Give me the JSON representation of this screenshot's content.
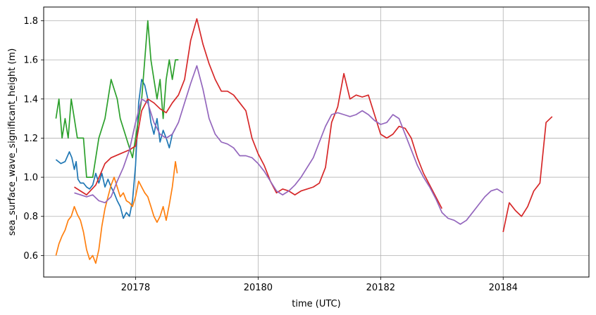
{
  "chart_data": {
    "type": "line",
    "title": "",
    "xlabel": "time (UTC)",
    "ylabel": "sea_surface_wave_significant_height (m)",
    "xlim": [
      20176.5,
      20185.4
    ],
    "ylim": [
      0.49,
      1.87
    ],
    "xticks": [
      20178,
      20180,
      20182,
      20184
    ],
    "xtick_labels": [
      "20178",
      "20180",
      "20182",
      "20184"
    ],
    "yticks": [
      0.6,
      0.8,
      1.0,
      1.2,
      1.4,
      1.6,
      1.8
    ],
    "ytick_labels": [
      "0.6",
      "0.8",
      "1.0",
      "1.2",
      "1.4",
      "1.6",
      "1.8"
    ],
    "grid": true,
    "legend": "none",
    "series": [
      {
        "color": "#1f77b4",
        "points": [
          [
            20176.7,
            1.09
          ],
          [
            20176.78,
            1.07
          ],
          [
            20176.85,
            1.08
          ],
          [
            20176.92,
            1.13
          ],
          [
            20176.96,
            1.1
          ],
          [
            20177.0,
            1.04
          ],
          [
            20177.03,
            1.08
          ],
          [
            20177.06,
            0.99
          ],
          [
            20177.1,
            0.97
          ],
          [
            20177.15,
            0.97
          ],
          [
            20177.2,
            0.95
          ],
          [
            20177.25,
            0.94
          ],
          [
            20177.3,
            0.96
          ],
          [
            20177.35,
            1.02
          ],
          [
            20177.4,
            0.97
          ],
          [
            20177.45,
            1.02
          ],
          [
            20177.5,
            0.95
          ],
          [
            20177.55,
            0.99
          ],
          [
            20177.6,
            0.95
          ],
          [
            20177.65,
            0.92
          ],
          [
            20177.7,
            0.88
          ],
          [
            20177.75,
            0.85
          ],
          [
            20177.8,
            0.79
          ],
          [
            20177.85,
            0.82
          ],
          [
            20177.9,
            0.8
          ],
          [
            20177.95,
            0.88
          ],
          [
            20178.0,
            1.06
          ],
          [
            20178.05,
            1.38
          ],
          [
            20178.1,
            1.5
          ],
          [
            20178.15,
            1.47
          ],
          [
            20178.2,
            1.4
          ],
          [
            20178.25,
            1.28
          ],
          [
            20178.3,
            1.22
          ],
          [
            20178.35,
            1.3
          ],
          [
            20178.4,
            1.18
          ],
          [
            20178.45,
            1.24
          ],
          [
            20178.5,
            1.2
          ],
          [
            20178.55,
            1.15
          ],
          [
            20178.6,
            1.22
          ],
          [
            20178.65,
            1.25
          ]
        ]
      },
      {
        "color": "#ff7f0e",
        "points": [
          [
            20176.7,
            0.6
          ],
          [
            20176.75,
            0.66
          ],
          [
            20176.8,
            0.7
          ],
          [
            20176.85,
            0.73
          ],
          [
            20176.9,
            0.78
          ],
          [
            20176.95,
            0.8
          ],
          [
            20177.0,
            0.85
          ],
          [
            20177.05,
            0.81
          ],
          [
            20177.1,
            0.78
          ],
          [
            20177.15,
            0.72
          ],
          [
            20177.2,
            0.63
          ],
          [
            20177.25,
            0.58
          ],
          [
            20177.3,
            0.6
          ],
          [
            20177.35,
            0.56
          ],
          [
            20177.4,
            0.63
          ],
          [
            20177.45,
            0.75
          ],
          [
            20177.5,
            0.84
          ],
          [
            20177.55,
            0.9
          ],
          [
            20177.6,
            0.96
          ],
          [
            20177.65,
            1.0
          ],
          [
            20177.7,
            0.95
          ],
          [
            20177.75,
            0.9
          ],
          [
            20177.8,
            0.92
          ],
          [
            20177.85,
            0.88
          ],
          [
            20177.9,
            0.87
          ],
          [
            20177.95,
            0.85
          ],
          [
            20178.0,
            0.9
          ],
          [
            20178.05,
            0.98
          ],
          [
            20178.1,
            0.95
          ],
          [
            20178.15,
            0.92
          ],
          [
            20178.2,
            0.9
          ],
          [
            20178.25,
            0.85
          ],
          [
            20178.3,
            0.8
          ],
          [
            20178.35,
            0.77
          ],
          [
            20178.4,
            0.8
          ],
          [
            20178.45,
            0.85
          ],
          [
            20178.5,
            0.78
          ],
          [
            20178.55,
            0.86
          ],
          [
            20178.6,
            0.95
          ],
          [
            20178.65,
            1.08
          ],
          [
            20178.68,
            1.02
          ]
        ]
      },
      {
        "color": "#2ca02c",
        "points": [
          [
            20176.7,
            1.3
          ],
          [
            20176.75,
            1.4
          ],
          [
            20176.8,
            1.2
          ],
          [
            20176.85,
            1.3
          ],
          [
            20176.9,
            1.2
          ],
          [
            20176.95,
            1.4
          ],
          [
            20177.0,
            1.3
          ],
          [
            20177.05,
            1.2
          ],
          [
            20177.15,
            1.2
          ],
          [
            20177.2,
            1.0
          ],
          [
            20177.3,
            1.0
          ],
          [
            20177.4,
            1.2
          ],
          [
            20177.5,
            1.3
          ],
          [
            20177.6,
            1.5
          ],
          [
            20177.7,
            1.4
          ],
          [
            20177.75,
            1.3
          ],
          [
            20177.85,
            1.2
          ],
          [
            20177.95,
            1.1
          ],
          [
            20178.0,
            1.2
          ],
          [
            20178.05,
            1.3
          ],
          [
            20178.1,
            1.4
          ],
          [
            20178.15,
            1.6
          ],
          [
            20178.2,
            1.8
          ],
          [
            20178.25,
            1.6
          ],
          [
            20178.3,
            1.5
          ],
          [
            20178.35,
            1.4
          ],
          [
            20178.4,
            1.5
          ],
          [
            20178.45,
            1.3
          ],
          [
            20178.5,
            1.5
          ],
          [
            20178.55,
            1.6
          ],
          [
            20178.6,
            1.5
          ],
          [
            20178.65,
            1.6
          ],
          [
            20178.7,
            1.6
          ]
        ]
      },
      {
        "color": "#d62728",
        "points": [
          [
            20177.0,
            0.95
          ],
          [
            20177.1,
            0.93
          ],
          [
            20177.2,
            0.91
          ],
          [
            20177.35,
            0.96
          ],
          [
            20177.5,
            1.07
          ],
          [
            20177.6,
            1.1
          ],
          [
            20177.75,
            1.12
          ],
          [
            20177.9,
            1.14
          ],
          [
            20178.0,
            1.16
          ],
          [
            20178.1,
            1.34
          ],
          [
            20178.2,
            1.4
          ],
          [
            20178.3,
            1.38
          ],
          [
            20178.4,
            1.35
          ],
          [
            20178.5,
            1.33
          ],
          [
            20178.6,
            1.38
          ],
          [
            20178.7,
            1.42
          ],
          [
            20178.8,
            1.5
          ],
          [
            20178.9,
            1.7
          ],
          [
            20179.0,
            1.81
          ],
          [
            20179.1,
            1.68
          ],
          [
            20179.2,
            1.58
          ],
          [
            20179.3,
            1.5
          ],
          [
            20179.4,
            1.44
          ],
          [
            20179.5,
            1.44
          ],
          [
            20179.6,
            1.42
          ],
          [
            20179.7,
            1.38
          ],
          [
            20179.8,
            1.34
          ],
          [
            20179.9,
            1.2
          ],
          [
            20180.0,
            1.12
          ],
          [
            20180.1,
            1.06
          ],
          [
            20180.2,
            0.98
          ],
          [
            20180.3,
            0.92
          ],
          [
            20180.4,
            0.94
          ],
          [
            20180.5,
            0.93
          ],
          [
            20180.6,
            0.91
          ],
          [
            20180.7,
            0.93
          ],
          [
            20180.8,
            0.94
          ],
          [
            20180.9,
            0.95
          ],
          [
            20181.0,
            0.97
          ],
          [
            20181.1,
            1.05
          ],
          [
            20181.2,
            1.28
          ],
          [
            20181.3,
            1.36
          ],
          [
            20181.4,
            1.53
          ],
          [
            20181.5,
            1.4
          ],
          [
            20181.6,
            1.42
          ],
          [
            20181.7,
            1.41
          ],
          [
            20181.8,
            1.42
          ],
          [
            20181.9,
            1.32
          ],
          [
            20182.0,
            1.22
          ],
          [
            20182.1,
            1.2
          ],
          [
            20182.2,
            1.22
          ],
          [
            20182.3,
            1.26
          ],
          [
            20182.4,
            1.25
          ],
          [
            20182.5,
            1.2
          ],
          [
            20182.6,
            1.1
          ],
          [
            20182.7,
            1.02
          ],
          [
            20182.8,
            0.96
          ],
          [
            20182.9,
            0.9
          ],
          [
            20183.0,
            0.84
          ],
          null,
          [
            20184.0,
            0.72
          ],
          [
            20184.1,
            0.87
          ],
          [
            20184.2,
            0.83
          ],
          [
            20184.3,
            0.8
          ],
          [
            20184.4,
            0.85
          ],
          [
            20184.5,
            0.93
          ],
          [
            20184.6,
            0.97
          ],
          [
            20184.7,
            1.28
          ],
          [
            20184.8,
            1.31
          ]
        ]
      },
      {
        "color": "#9467bd",
        "points": [
          [
            20177.0,
            0.92
          ],
          [
            20177.1,
            0.91
          ],
          [
            20177.2,
            0.9
          ],
          [
            20177.3,
            0.91
          ],
          [
            20177.4,
            0.88
          ],
          [
            20177.5,
            0.87
          ],
          [
            20177.6,
            0.9
          ],
          [
            20177.7,
            0.98
          ],
          [
            20177.8,
            1.05
          ],
          [
            20177.9,
            1.14
          ],
          [
            20178.0,
            1.28
          ],
          [
            20178.1,
            1.4
          ],
          [
            20178.2,
            1.38
          ],
          [
            20178.3,
            1.28
          ],
          [
            20178.4,
            1.22
          ],
          [
            20178.5,
            1.2
          ],
          [
            20178.6,
            1.22
          ],
          [
            20178.7,
            1.28
          ],
          [
            20178.8,
            1.38
          ],
          [
            20178.9,
            1.48
          ],
          [
            20179.0,
            1.57
          ],
          [
            20179.1,
            1.45
          ],
          [
            20179.2,
            1.3
          ],
          [
            20179.3,
            1.22
          ],
          [
            20179.4,
            1.18
          ],
          [
            20179.5,
            1.17
          ],
          [
            20179.6,
            1.15
          ],
          [
            20179.7,
            1.11
          ],
          [
            20179.8,
            1.11
          ],
          [
            20179.9,
            1.1
          ],
          [
            20180.0,
            1.07
          ],
          [
            20180.1,
            1.03
          ],
          [
            20180.2,
            0.98
          ],
          [
            20180.3,
            0.93
          ],
          [
            20180.4,
            0.91
          ],
          [
            20180.5,
            0.93
          ],
          [
            20180.6,
            0.96
          ],
          [
            20180.7,
            1.0
          ],
          [
            20180.8,
            1.05
          ],
          [
            20180.9,
            1.1
          ],
          [
            20181.0,
            1.18
          ],
          [
            20181.1,
            1.26
          ],
          [
            20181.2,
            1.32
          ],
          [
            20181.3,
            1.33
          ],
          [
            20181.4,
            1.32
          ],
          [
            20181.5,
            1.31
          ],
          [
            20181.6,
            1.32
          ],
          [
            20181.7,
            1.34
          ],
          [
            20181.8,
            1.32
          ],
          [
            20181.9,
            1.29
          ],
          [
            20182.0,
            1.27
          ],
          [
            20182.1,
            1.28
          ],
          [
            20182.2,
            1.32
          ],
          [
            20182.3,
            1.3
          ],
          [
            20182.4,
            1.22
          ],
          [
            20182.5,
            1.14
          ],
          [
            20182.6,
            1.06
          ],
          [
            20182.7,
            1.0
          ],
          [
            20182.8,
            0.95
          ],
          [
            20182.9,
            0.89
          ],
          [
            20183.0,
            0.82
          ],
          [
            20183.1,
            0.79
          ],
          [
            20183.2,
            0.78
          ],
          [
            20183.3,
            0.76
          ],
          [
            20183.4,
            0.78
          ],
          [
            20183.5,
            0.82
          ],
          [
            20183.6,
            0.86
          ],
          [
            20183.7,
            0.9
          ],
          [
            20183.8,
            0.93
          ],
          [
            20183.9,
            0.94
          ],
          [
            20184.0,
            0.92
          ]
        ]
      }
    ]
  }
}
